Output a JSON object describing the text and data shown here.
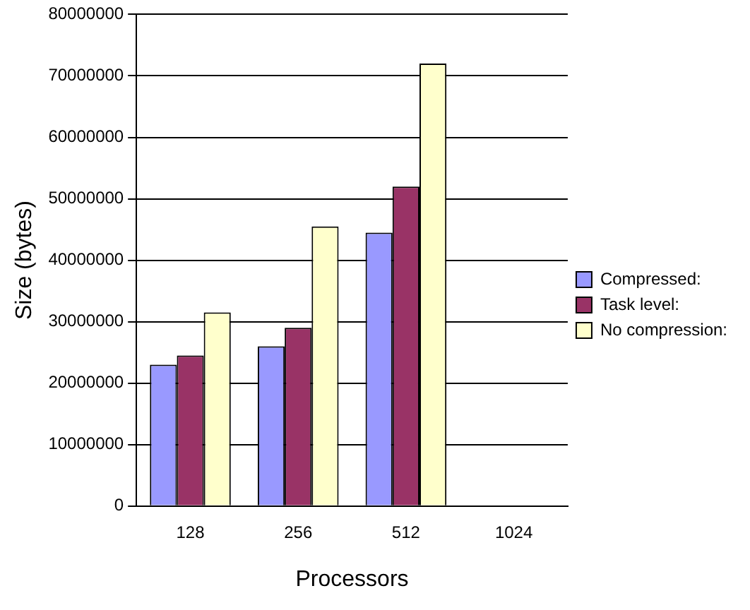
{
  "chart_data": {
    "type": "bar",
    "xlabel": "Processors",
    "ylabel": "Size (bytes)",
    "categories": [
      "128",
      "256",
      "512",
      "1024"
    ],
    "series": [
      {
        "name": "Compressed:",
        "color": "#9999ff",
        "values": [
          23000000,
          26000000,
          44500000,
          null
        ]
      },
      {
        "name": "Task level:",
        "color": "#993366",
        "values": [
          24500000,
          29000000,
          52000000,
          null
        ]
      },
      {
        "name": "No compression:",
        "color": "#ffffcc",
        "values": [
          31500000,
          45500000,
          72000000,
          null
        ]
      }
    ],
    "ylim": [
      0,
      80000000
    ],
    "yticks": [
      0,
      10000000,
      20000000,
      30000000,
      40000000,
      50000000,
      60000000,
      70000000,
      80000000
    ],
    "grid": "y",
    "legend": "right"
  }
}
